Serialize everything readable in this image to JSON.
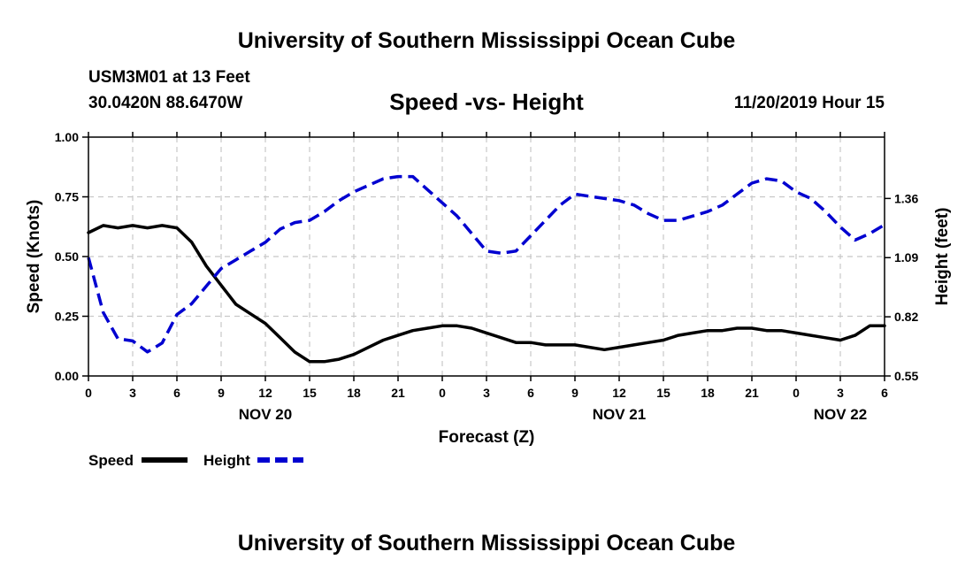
{
  "header": {
    "title_top": "University of Southern Mississippi Ocean Cube",
    "station": "USM3M01 at 13 Feet",
    "coords": "30.0420N 88.6470W",
    "subtitle": "Speed -vs- Height",
    "datetime": "11/20/2019 Hour 15",
    "title_bottom": "University of Southern Mississippi Ocean Cube"
  },
  "chart_data": {
    "type": "line",
    "title": "Speed -vs- Height",
    "xlabel": "Forecast (Z)",
    "ylabel_left": "Speed (Knots)",
    "ylabel_right": "Height (feet)",
    "x_range": [
      0,
      54
    ],
    "x_tick_labels": [
      "0",
      "3",
      "6",
      "9",
      "12",
      "15",
      "18",
      "21",
      "0",
      "3",
      "6",
      "9",
      "12",
      "15",
      "18",
      "21",
      "0",
      "3",
      "6"
    ],
    "date_labels": [
      {
        "hour": 12,
        "label": "NOV 20"
      },
      {
        "hour": 36,
        "label": "NOV 21"
      },
      {
        "hour": 51,
        "label": "NOV 22"
      }
    ],
    "ylim_left": [
      0,
      1.0
    ],
    "y_ticks_left": [
      "0.00",
      "0.25",
      "0.50",
      "0.75",
      "1.00"
    ],
    "ylim_right": [
      0.55,
      1.64
    ],
    "y_ticks_right": [
      {
        "value": 0.55,
        "label": "0.55"
      },
      {
        "value": 0.82,
        "label": "0.82"
      },
      {
        "value": 1.09,
        "label": "1.09"
      },
      {
        "value": 1.36,
        "label": "1.36"
      }
    ],
    "grid": true,
    "legend": "bottom-left",
    "series": [
      {
        "name": "Speed",
        "color": "#000000",
        "dash": "solid",
        "axis": "left",
        "x": [
          0,
          1,
          2,
          3,
          4,
          5,
          6,
          7,
          8,
          9,
          10,
          11,
          12,
          13,
          14,
          15,
          16,
          17,
          18,
          19,
          20,
          21,
          22,
          23,
          24,
          25,
          26,
          27,
          28,
          29,
          30,
          31,
          32,
          33,
          34,
          35,
          36,
          37,
          38,
          39,
          40,
          41,
          42,
          43,
          44,
          45,
          46,
          47,
          48,
          49,
          50,
          51,
          52,
          53,
          54
        ],
        "values": [
          0.6,
          0.63,
          0.62,
          0.63,
          0.62,
          0.63,
          0.62,
          0.56,
          0.46,
          0.38,
          0.3,
          0.26,
          0.22,
          0.16,
          0.1,
          0.06,
          0.06,
          0.07,
          0.09,
          0.12,
          0.15,
          0.17,
          0.19,
          0.2,
          0.21,
          0.21,
          0.2,
          0.18,
          0.16,
          0.14,
          0.14,
          0.13,
          0.13,
          0.13,
          0.12,
          0.11,
          0.12,
          0.13,
          0.14,
          0.15,
          0.17,
          0.18,
          0.19,
          0.19,
          0.2,
          0.2,
          0.19,
          0.19,
          0.18,
          0.17,
          0.16,
          0.15,
          0.17,
          0.21,
          0.21
        ]
      },
      {
        "name": "Height",
        "color": "#0000d0",
        "dash": "dashed",
        "axis": "right",
        "x": [
          0,
          1,
          2,
          3,
          4,
          5,
          6,
          7,
          8,
          9,
          10,
          11,
          12,
          13,
          14,
          15,
          16,
          17,
          18,
          19,
          20,
          21,
          22,
          23,
          24,
          25,
          26,
          27,
          28,
          29,
          30,
          31,
          32,
          33,
          34,
          35,
          36,
          37,
          38,
          39,
          40,
          41,
          42,
          43,
          44,
          45,
          46,
          47,
          48,
          49,
          50,
          51,
          52,
          53,
          54
        ],
        "values": [
          1.09,
          0.84,
          0.72,
          0.71,
          0.66,
          0.7,
          0.83,
          0.88,
          0.96,
          1.04,
          1.08,
          1.12,
          1.16,
          1.22,
          1.25,
          1.26,
          1.3,
          1.35,
          1.39,
          1.42,
          1.45,
          1.46,
          1.46,
          1.4,
          1.34,
          1.28,
          1.2,
          1.12,
          1.11,
          1.12,
          1.19,
          1.26,
          1.33,
          1.38,
          1.37,
          1.36,
          1.35,
          1.33,
          1.29,
          1.26,
          1.26,
          1.28,
          1.3,
          1.33,
          1.38,
          1.43,
          1.45,
          1.44,
          1.39,
          1.36,
          1.3,
          1.23,
          1.17,
          1.2,
          1.24
        ]
      }
    ]
  }
}
